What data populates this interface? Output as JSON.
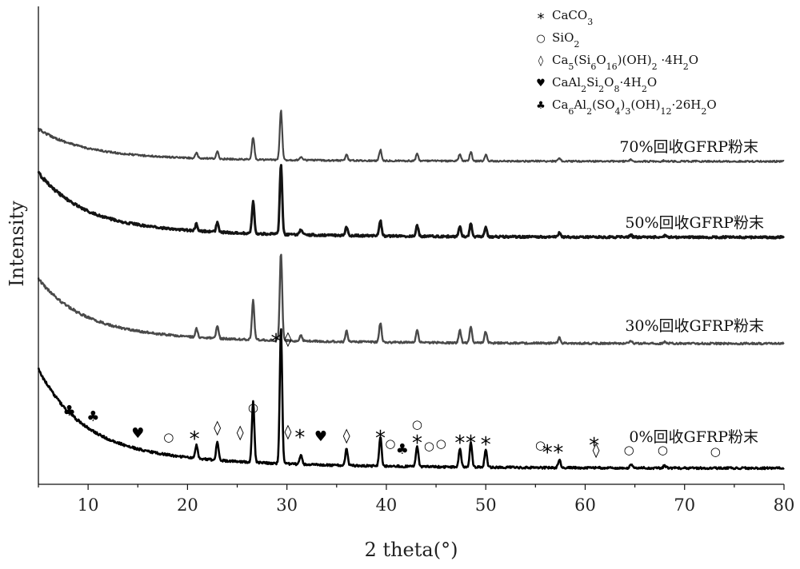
{
  "chart_data": {
    "type": "line",
    "title": "",
    "xlabel": "2 theta(°)",
    "ylabel": "Intensity",
    "xlim": [
      5,
      80
    ],
    "xticks": [
      10,
      20,
      30,
      40,
      50,
      60,
      70,
      80
    ],
    "grid": false,
    "legend": {
      "position": "top-right",
      "entries": [
        {
          "symbol": "*",
          "html": "CaCO<tspan baseline-shift=\"sub\" font-size=\"11\">3</tspan>",
          "text": "CaCO3"
        },
        {
          "symbol": "○",
          "html": "SiO<tspan baseline-shift=\"sub\" font-size=\"11\">2</tspan>",
          "text": "SiO2"
        },
        {
          "symbol": "◊",
          "html": "Ca<tspan baseline-shift=\"sub\" font-size=\"11\">5</tspan>(Si<tspan baseline-shift=\"sub\" font-size=\"11\">6</tspan>O<tspan baseline-shift=\"sub\" font-size=\"11\">16</tspan>)(OH)<tspan baseline-shift=\"sub\" font-size=\"11\">2</tspan> ·4H<tspan baseline-shift=\"sub\" font-size=\"11\">2</tspan>O",
          "text": "Ca5(Si6O16)(OH)2 ·4H2O"
        },
        {
          "symbol": "♥",
          "html": "CaAl<tspan baseline-shift=\"sub\" font-size=\"11\">2</tspan>Si<tspan baseline-shift=\"sub\" font-size=\"11\">2</tspan>O<tspan baseline-shift=\"sub\" font-size=\"11\">8</tspan>·4H<tspan baseline-shift=\"sub\" font-size=\"11\">2</tspan>O",
          "text": "CaAl2Si2O8·4H2O"
        },
        {
          "symbol": "♣",
          "html": "Ca<tspan baseline-shift=\"sub\" font-size=\"11\">6</tspan>Al<tspan baseline-shift=\"sub\" font-size=\"11\">2</tspan>(SO<tspan baseline-shift=\"sub\" font-size=\"11\">4</tspan>)<tspan baseline-shift=\"sub\" font-size=\"11\">3</tspan>(OH)<tspan baseline-shift=\"sub\" font-size=\"11\">12</tspan>·26H<tspan baseline-shift=\"sub\" font-size=\"11\">2</tspan>O",
          "text": "Ca6Al2(SO4)3(OH)12·26H2O"
        }
      ]
    },
    "series": [
      {
        "name": "70%回收GFRP粉末",
        "color": "#454545"
      },
      {
        "name": "50%回收GFRP粉末",
        "color": "#141414"
      },
      {
        "name": "30%回收GFRP粉末",
        "color": "#4a4a4a"
      },
      {
        "name": "0%回收GFRP粉末",
        "color": "#000000"
      }
    ],
    "peaks": [
      {
        "x": 20.9,
        "h": 0.1
      },
      {
        "x": 23.0,
        "h": 0.14
      },
      {
        "x": 26.6,
        "h": 0.45
      },
      {
        "x": 29.4,
        "h": 1.0
      },
      {
        "x": 31.4,
        "h": 0.07
      },
      {
        "x": 36.0,
        "h": 0.12
      },
      {
        "x": 39.4,
        "h": 0.22
      },
      {
        "x": 43.1,
        "h": 0.15
      },
      {
        "x": 47.4,
        "h": 0.14
      },
      {
        "x": 48.5,
        "h": 0.18
      },
      {
        "x": 50.0,
        "h": 0.13
      },
      {
        "x": 57.4,
        "h": 0.06
      },
      {
        "x": 64.6,
        "h": 0.03
      },
      {
        "x": 68.0,
        "h": 0.02
      }
    ],
    "phase_markers": [
      {
        "symbol": "♣",
        "x": 8.1
      },
      {
        "symbol": "♣",
        "x": 10.5
      },
      {
        "symbol": "♥",
        "x": 15.0
      },
      {
        "symbol": "○",
        "x": 18.1
      },
      {
        "symbol": "*",
        "x": 20.7
      },
      {
        "symbol": "◊",
        "x": 23.0
      },
      {
        "symbol": "◊",
        "x": 25.3
      },
      {
        "symbol": "○",
        "x": 26.6
      },
      {
        "symbol": "*",
        "x": 28.9
      },
      {
        "symbol": "◊",
        "x": 30.1
      },
      {
        "symbol": "◊",
        "x": 30.1
      },
      {
        "symbol": "*",
        "x": 31.3
      },
      {
        "symbol": "♥",
        "x": 33.4
      },
      {
        "symbol": "◊",
        "x": 36.0
      },
      {
        "symbol": "*",
        "x": 39.4
      },
      {
        "symbol": "○",
        "x": 40.4
      },
      {
        "symbol": "♣",
        "x": 41.6
      },
      {
        "symbol": "*",
        "x": 43.1
      },
      {
        "symbol": "○",
        "x": 43.1
      },
      {
        "symbol": "○",
        "x": 44.3
      },
      {
        "symbol": "○",
        "x": 45.5
      },
      {
        "symbol": "*",
        "x": 47.4
      },
      {
        "symbol": "*",
        "x": 48.5
      },
      {
        "symbol": "*",
        "x": 50.0
      },
      {
        "symbol": "○",
        "x": 55.5
      },
      {
        "symbol": "*",
        "x": 56.2
      },
      {
        "symbol": "*",
        "x": 57.3
      },
      {
        "symbol": "*",
        "x": 60.9
      },
      {
        "symbol": "◊",
        "x": 61.1
      },
      {
        "symbol": "○",
        "x": 64.4
      },
      {
        "symbol": "○",
        "x": 67.8
      },
      {
        "symbol": "○",
        "x": 73.1
      }
    ]
  }
}
